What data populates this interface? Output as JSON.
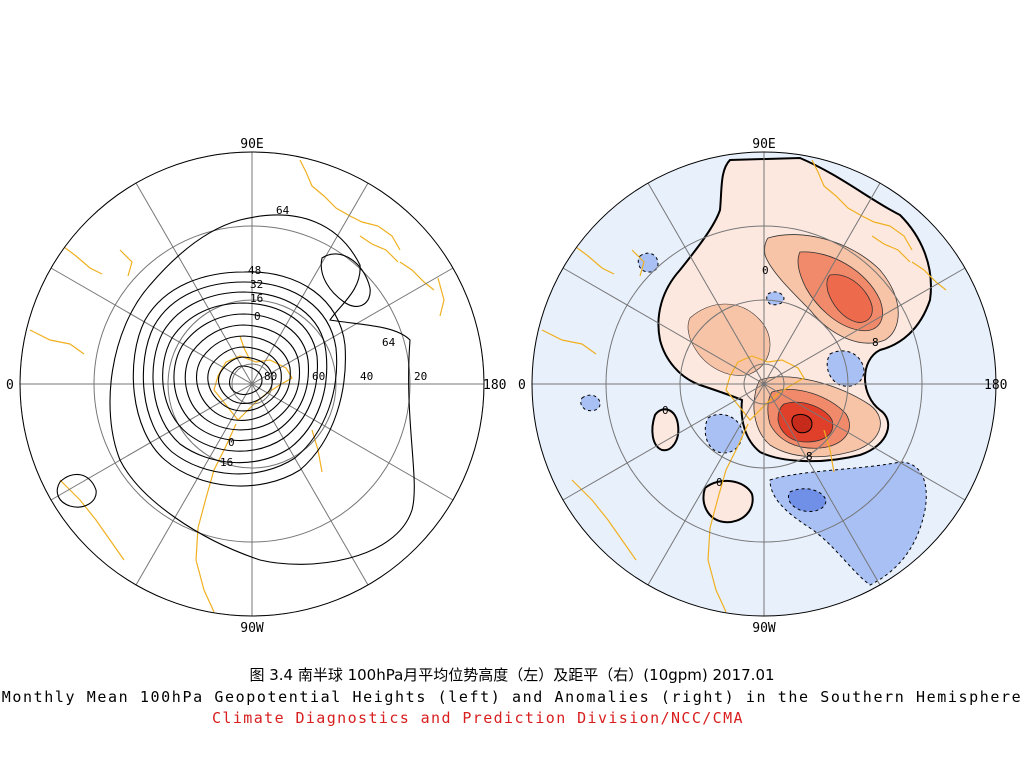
{
  "caption_zh": "图 3.4   南半球 100hPa月平均位势高度（左）及距平（右）(10gpm)    2017.01",
  "caption_en": "Monthly Mean 100hPa Geopotential Heights (left) and Anomalies (right) in the Southern Hemisphere",
  "caption_org": "Climate Diagnostics and Prediction Division/NCC/CMA",
  "colors": {
    "coastline": "#f0b020",
    "grid": "#777777",
    "anomaly_positive_light": "#fde8e0",
    "anomaly_positive_mid": "#f7c4a8",
    "anomaly_positive_strong": "#f08a6a",
    "anomaly_positive_core": "#e0402a",
    "anomaly_negative_light": "#e8f0fc",
    "anomaly_negative_mid": "#a8c0f4",
    "anomaly_negative_strong": "#7090e8"
  },
  "left_map": {
    "labels": {
      "top": "90E",
      "bottom": "90W",
      "left": "0",
      "right": "180"
    },
    "lat_labels": [
      "80",
      "60",
      "40",
      "20"
    ],
    "contour_labels": [
      "64",
      "48",
      "32",
      "16",
      "0",
      "64",
      "0",
      "16"
    ]
  },
  "right_map": {
    "labels": {
      "top": "90E",
      "bottom": "90W",
      "left": "0",
      "right": "180"
    },
    "contour_labels": [
      "0",
      "8",
      "0",
      "8",
      "0"
    ]
  }
}
